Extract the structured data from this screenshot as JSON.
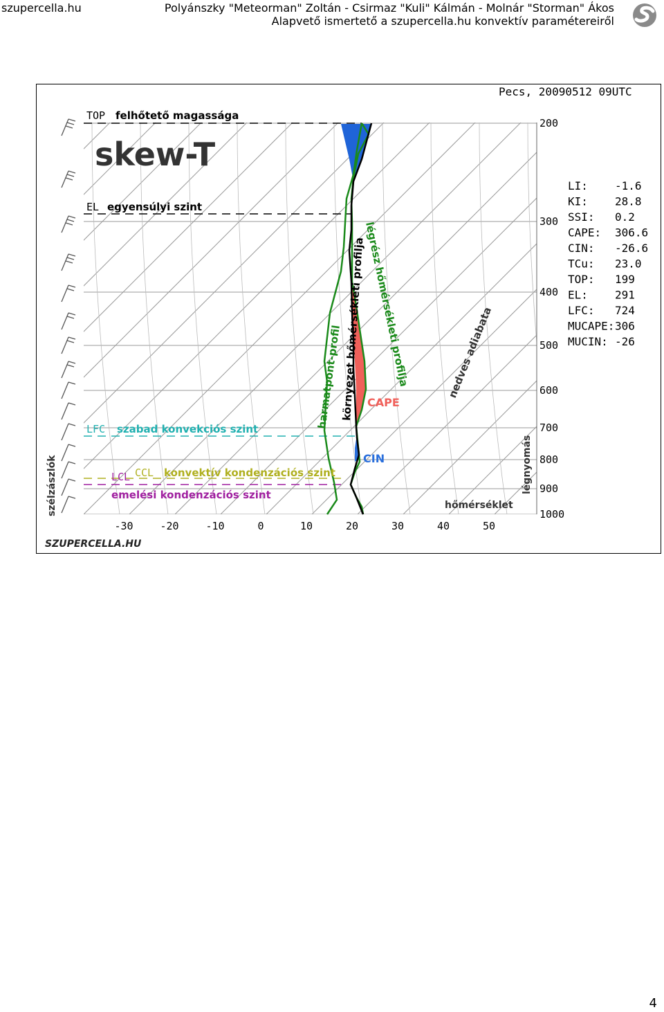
{
  "header": {
    "site": "szupercella.hu",
    "authors": "Polyánszky \"Meteorman\" Zoltán - Csirmaz \"Kuli\" Kálmán - Molnár \"Storman\" Ákos",
    "subtitle": "Alapvető ismertető a szupercella.hu konvektív paramétereiről",
    "logo_icon": "swirl-logo-icon"
  },
  "figure": {
    "station": "Pecs, 20090512 09UTC",
    "title": "skew-T",
    "brand": "SZUPERCELLA.HU",
    "labels": {
      "top_abbr": "TOP",
      "top_text": "felhőtető magassága",
      "el_abbr": "EL",
      "el_text": "egyensúlyi szint",
      "lfc_abbr": "LFC",
      "lfc_text": "szabad konvekciós szint",
      "ccl_abbr": "CCL",
      "ccl_text": "konvektív kondenzációs szint",
      "lcl_abbr": "LCL",
      "lcl_text": "emelési kondenzációs szint",
      "dewpoint": "harmatpont-profil",
      "environment": "környezet hőmérsékleti profilja",
      "parcel": "légrész hőmérsékleti profilja",
      "moist_adiabat": "nedves adiabata",
      "cape": "CAPE",
      "cin": "CIN",
      "pressure": "légnyomás",
      "temperature": "hőmérséklet",
      "winds": "szélzászlók"
    },
    "pressure_ticks": [
      "200",
      "300",
      "400",
      "500",
      "600",
      "700",
      "800",
      "900",
      "1000"
    ],
    "temp_ticks": [
      "-30",
      "-20",
      "-10",
      "0",
      "10",
      "20",
      "30",
      "40",
      "50"
    ],
    "indices": [
      {
        "name": "LI:",
        "value": "-1.6"
      },
      {
        "name": "KI:",
        "value": "28.8"
      },
      {
        "name": "SSI:",
        "value": "0.2"
      },
      {
        "name": "CAPE:",
        "value": "306.6"
      },
      {
        "name": "CIN:",
        "value": "-26.6"
      },
      {
        "name": "TCu:",
        "value": "23.0"
      },
      {
        "name": "TOP:",
        "value": "199"
      },
      {
        "name": "EL:",
        "value": "291"
      },
      {
        "name": "LFC:",
        "value": "724"
      },
      {
        "name": "MUCAPE:",
        "value": "306"
      },
      {
        "name": "MUCIN:",
        "value": "-26"
      }
    ],
    "colors": {
      "dewpoint": "#1a8a1a",
      "cape": "#f0605a",
      "cin": "#2a6fdc",
      "top_fill": "#1f64d8",
      "lfc_line": "#20b0b0",
      "lcl_line": "#a020a0",
      "ccl_line": "#b0b020",
      "moist_adiabat": "#333333"
    }
  },
  "page_number": "4"
}
